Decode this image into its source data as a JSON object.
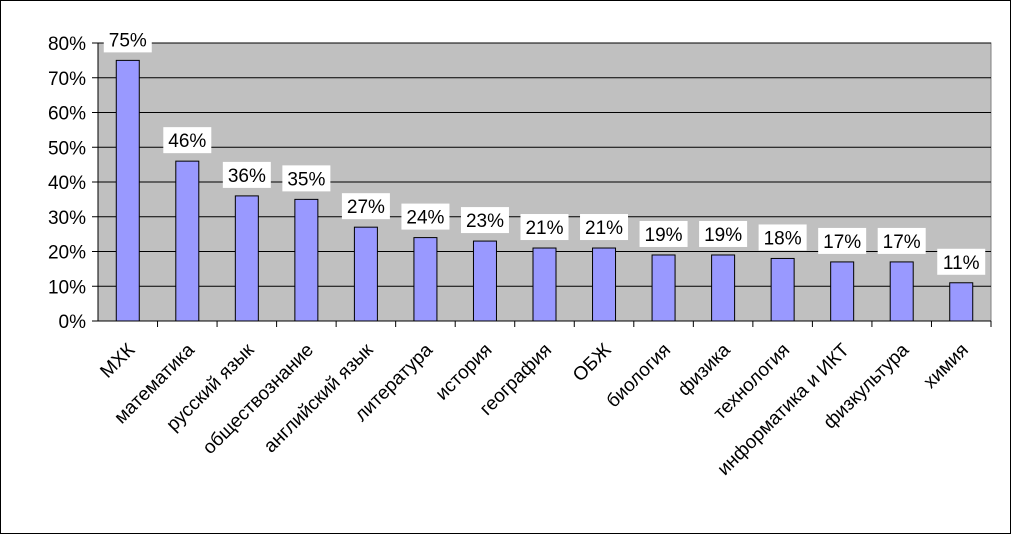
{
  "chart_data": {
    "type": "bar",
    "categories": [
      "МХК",
      "математика",
      "русский язык",
      "обществознание",
      "английский язык",
      "литература",
      "история",
      "география",
      "ОБЖ",
      "биология",
      "физика",
      "технология",
      "информатика и ИКТ",
      "физкультура",
      "химия"
    ],
    "values": [
      75,
      46,
      36,
      35,
      27,
      24,
      23,
      21,
      21,
      19,
      19,
      18,
      17,
      17,
      11
    ],
    "data_labels": [
      "75%",
      "46%",
      "36%",
      "35%",
      "27%",
      "24%",
      "23%",
      "21%",
      "21%",
      "19%",
      "19%",
      "18%",
      "17%",
      "17%",
      "11%"
    ],
    "y_ticks": [
      "0%",
      "10%",
      "20%",
      "30%",
      "40%",
      "50%",
      "60%",
      "70%",
      "80%"
    ],
    "ylim": [
      0,
      80
    ],
    "grid": true,
    "legend": "none",
    "colors": {
      "plot_background": "#C0C0C0",
      "bar_fill": "#9999FF",
      "bar_stroke": "#000000",
      "grid": "#000000",
      "label_box": "#FFFFFF"
    }
  }
}
